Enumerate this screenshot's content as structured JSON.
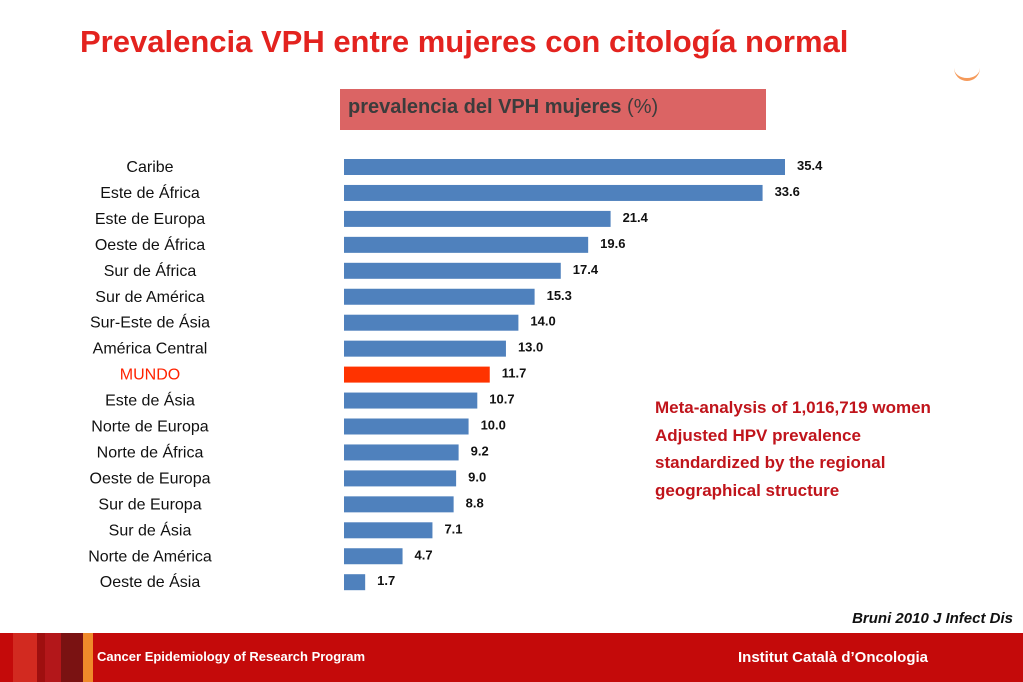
{
  "page": {
    "title": "Prevalencia VPH entre mujeres con citología normal"
  },
  "chart_header": {
    "text": "prevalencia del VPH mujeres",
    "unit": "(%)"
  },
  "chart_data": {
    "type": "bar",
    "orientation": "horizontal",
    "title": "prevalencia del VPH mujeres (%)",
    "categories": [
      "Caribe",
      "Este de África",
      "Este de Europa",
      "Oeste de África",
      "Sur de África",
      "Sur de América",
      "Sur-Este de Ásia",
      "América Central",
      "MUNDO",
      "Este de Ásia",
      "Norte de Europa",
      "Norte de África",
      "Oeste de Europa",
      "Sur de Europa",
      "Sur de Ásia",
      "Norte de América",
      "Oeste de Ásia"
    ],
    "values": [
      35.4,
      33.6,
      21.4,
      19.6,
      17.4,
      15.3,
      14.0,
      13.0,
      11.7,
      10.7,
      10.0,
      9.2,
      9.0,
      8.8,
      7.1,
      4.7,
      1.7
    ],
    "value_labels": [
      "35.4",
      "33.6",
      "21.4",
      "19.6",
      "17.4",
      "15.3",
      "14.0",
      "13.0",
      "11.7",
      "10.7",
      "10.0",
      "9.2",
      "9.0",
      "8.8",
      "7.1",
      "4.7",
      "1.7"
    ],
    "highlight_category": "MUNDO",
    "bar_color": "#4f81bd",
    "highlight_color": "#ff3300",
    "xlim": [
      0,
      35.4
    ],
    "grid": false,
    "legend": false
  },
  "note": {
    "lines": [
      "Meta-analysis of 1,016,719 women",
      "Adjusted HPV prevalence",
      "standardized by the regional",
      "geographical structure"
    ]
  },
  "citation": "Bruni 2010 J Infect Dis",
  "footer": {
    "left_text": "Cancer Epidemiology of Research Program",
    "right_text": "Institut Català d’Oncologia",
    "background": "#c40a0a"
  }
}
